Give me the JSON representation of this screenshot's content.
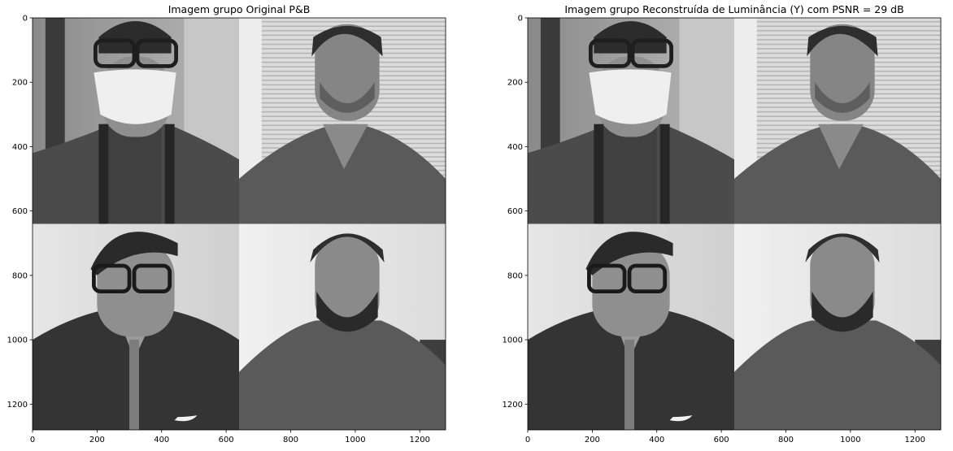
{
  "chart_data": [
    {
      "type": "image",
      "title": "Imagem grupo Original P&B",
      "xlim": [
        0,
        1280
      ],
      "ylim": [
        1280,
        0
      ],
      "x_ticks": [
        0,
        200,
        400,
        600,
        800,
        1000,
        1200
      ],
      "y_ticks": [
        0,
        200,
        400,
        600,
        800,
        1000,
        1200
      ],
      "x_tick_labels": [
        "0",
        "200",
        "400",
        "600",
        "800",
        "1000",
        "1200"
      ],
      "y_tick_labels": [
        "0",
        "200",
        "400",
        "600",
        "800",
        "1000",
        "1200"
      ],
      "colormap": "gray",
      "grid": false
    },
    {
      "type": "image",
      "title": "Imagem grupo Reconstruída de Luminância (Y) com PSNR = 29 dB",
      "xlim": [
        0,
        1280
      ],
      "ylim": [
        1280,
        0
      ],
      "x_ticks": [
        0,
        200,
        400,
        600,
        800,
        1000,
        1200
      ],
      "y_ticks": [
        0,
        200,
        400,
        600,
        800,
        1000,
        1200
      ],
      "x_tick_labels": [
        "0",
        "200",
        "400",
        "600",
        "800",
        "1000",
        "1200"
      ],
      "y_tick_labels": [
        "0",
        "200",
        "400",
        "600",
        "800",
        "1000",
        "1200"
      ],
      "colormap": "gray",
      "grid": false
    }
  ]
}
